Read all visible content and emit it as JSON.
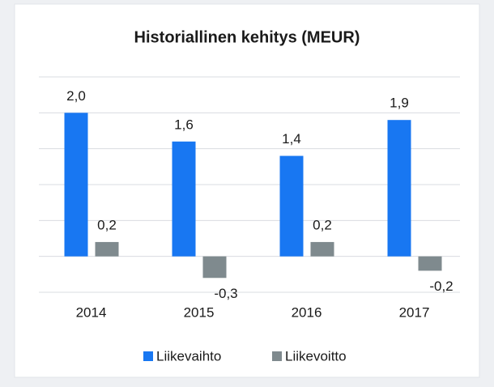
{
  "chart_data": {
    "type": "bar",
    "title": "Historiallinen kehitys (MEUR)",
    "categories": [
      "2014",
      "2015",
      "2016",
      "2017"
    ],
    "series": [
      {
        "name": "Liikevaihto",
        "color": "#1877f2",
        "values": [
          2.0,
          1.6,
          1.4,
          1.9
        ],
        "value_labels": [
          "2,0",
          "1,6",
          "1,4",
          "1,9"
        ]
      },
      {
        "name": "Liikevoitto",
        "color": "#7f8a8e",
        "values": [
          0.2,
          -0.3,
          0.2,
          -0.2
        ],
        "value_labels": [
          "0,2",
          "-0,3",
          "0,2",
          "-0,2"
        ]
      }
    ],
    "ylim": [
      -0.5,
      2.5
    ],
    "yticks": [
      -0.5,
      0,
      0.5,
      1,
      1.5,
      2,
      2.5
    ],
    "grid": true,
    "legend": "bottom"
  }
}
